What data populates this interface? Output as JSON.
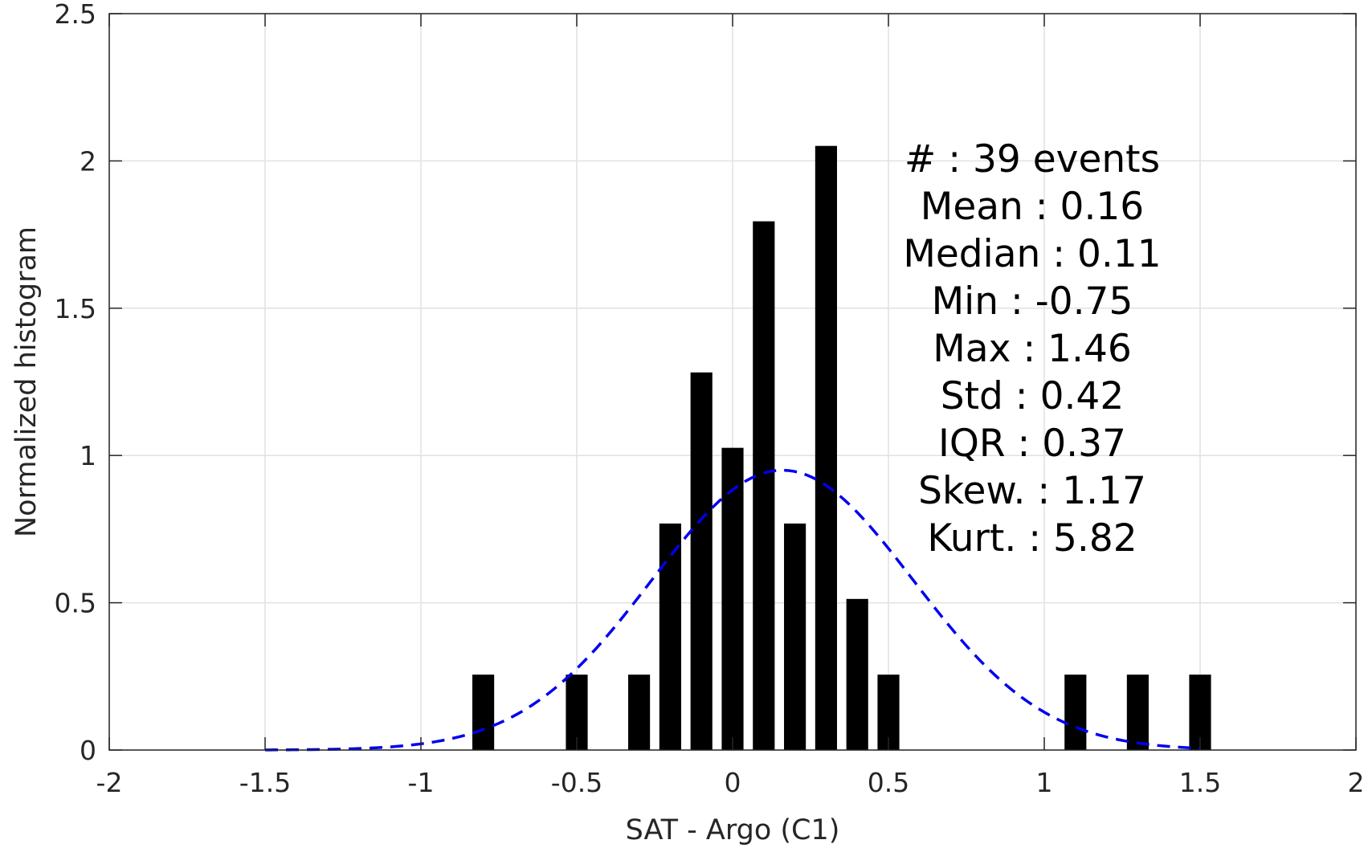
{
  "chart_data": {
    "type": "bar",
    "xlabel": "SAT - Argo (C1)",
    "ylabel": "Normalized histogram",
    "xlim": [
      -2,
      2
    ],
    "ylim": [
      0,
      2.5
    ],
    "grid": true,
    "x_ticks": [
      "-2",
      "-1.5",
      "-1",
      "-0.5",
      "0",
      "0.5",
      "1",
      "1.5",
      "2"
    ],
    "y_ticks": [
      "0",
      "0.5",
      "1",
      "1.5",
      "2",
      "2.5"
    ],
    "bar_width": 0.07,
    "bar_color": "#000000",
    "bars": [
      {
        "x": -0.8,
        "value": 0.256
      },
      {
        "x": -0.5,
        "value": 0.256
      },
      {
        "x": -0.3,
        "value": 0.256
      },
      {
        "x": -0.2,
        "value": 0.769
      },
      {
        "x": -0.1,
        "value": 1.282
      },
      {
        "x": 0.0,
        "value": 1.026
      },
      {
        "x": 0.1,
        "value": 1.795
      },
      {
        "x": 0.2,
        "value": 0.769
      },
      {
        "x": 0.3,
        "value": 2.051
      },
      {
        "x": 0.4,
        "value": 0.513
      },
      {
        "x": 0.5,
        "value": 0.256
      },
      {
        "x": 1.1,
        "value": 0.256
      },
      {
        "x": 1.3,
        "value": 0.256
      },
      {
        "x": 1.5,
        "value": 0.256
      }
    ],
    "fit_curve": {
      "style": "dashed",
      "color": "#0000ee",
      "mean": 0.16,
      "std": 0.42,
      "x_range": [
        -1.5,
        1.5
      ]
    },
    "stats_lines": [
      "#  : 39 events",
      "Mean : 0.16",
      "Median : 0.11",
      "Min : -0.75",
      "Max : 1.46",
      "Std : 0.42",
      "IQR : 0.37",
      "Skew. : 1.17",
      "Kurt. : 5.82"
    ]
  }
}
